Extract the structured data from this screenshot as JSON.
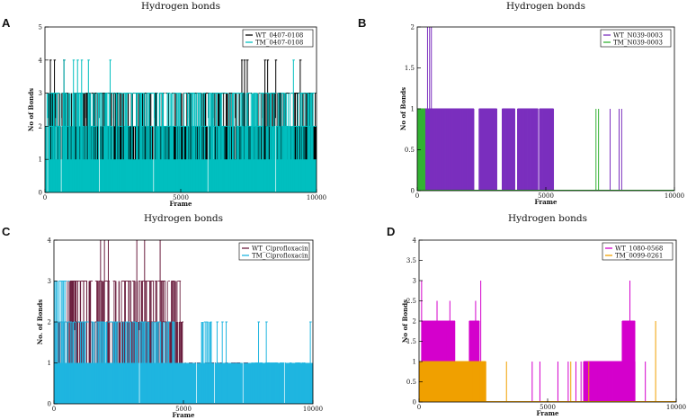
{
  "chart_data": [
    {
      "panel": "A",
      "type": "line",
      "title": "Hydrogen bonds",
      "xlabel": "Frame",
      "ylabel": "No of Bonds",
      "xlim": [
        0,
        10000
      ],
      "ylim": [
        0,
        5
      ],
      "xticks": [
        0,
        5000,
        10000
      ],
      "yticks": [
        0,
        1,
        2,
        3,
        4,
        5
      ],
      "legend_position": "top-right",
      "series": [
        {
          "name": "WT_0407-0108",
          "color": "#000000",
          "mode": "dense",
          "base": [
            [
              0,
              10000,
              2
            ]
          ],
          "high": [
            [
              0,
              10000,
              3
            ]
          ],
          "spikes": [
            [
              200,
              4
            ],
            [
              350,
              4
            ],
            [
              700,
              4
            ],
            [
              7250,
              4
            ],
            [
              7350,
              4
            ],
            [
              7450,
              4
            ],
            [
              8100,
              4
            ],
            [
              8200,
              4
            ],
            [
              8500,
              4
            ],
            [
              9400,
              4
            ]
          ],
          "drops": [
            [
              50,
              0
            ],
            [
              400,
              0
            ],
            [
              900,
              0
            ],
            [
              1500,
              0
            ],
            [
              1900,
              1
            ],
            [
              2500,
              1
            ],
            [
              3300,
              1
            ],
            [
              4200,
              1
            ],
            [
              5300,
              1
            ],
            [
              6200,
              1
            ],
            [
              7000,
              1
            ],
            [
              8000,
              1
            ],
            [
              9100,
              1
            ]
          ]
        },
        {
          "name": "TM_0407-0108",
          "color": "#00BFBF",
          "mode": "dense",
          "base": [
            [
              0,
              10000,
              1
            ]
          ],
          "high": [
            [
              0,
              10000,
              2
            ],
            [
              0,
              1500,
              3
            ],
            [
              1500,
              10000,
              3
            ]
          ],
          "spikes": [
            [
              700,
              4
            ],
            [
              1050,
              4
            ],
            [
              1200,
              4
            ],
            [
              1350,
              4
            ],
            [
              1600,
              4
            ],
            [
              2400,
              4
            ],
            [
              9150,
              4
            ]
          ],
          "drops": [
            [
              100,
              0
            ],
            [
              600,
              0
            ],
            [
              2000,
              0
            ],
            [
              4000,
              0
            ],
            [
              6000,
              0
            ],
            [
              8500,
              0
            ]
          ]
        }
      ]
    },
    {
      "panel": "B",
      "type": "line",
      "title": "Hydrogen bonds",
      "xlabel": "Frame",
      "ylabel": "No of Bonds",
      "xlim": [
        0,
        10000
      ],
      "ylim": [
        0,
        2
      ],
      "xticks": [
        0,
        5000,
        10000
      ],
      "yticks": [
        0,
        0.5,
        1,
        1.5,
        2
      ],
      "legend_position": "top-right",
      "series": [
        {
          "name": "WT_N039-0003",
          "color": "#7B2FBE",
          "mode": "sparse",
          "fill_ranges": [
            [
              0,
              450,
              1
            ],
            [
              450,
              650,
              1
            ],
            [
              650,
              2200,
              1
            ],
            [
              2400,
              3100,
              1
            ],
            [
              3300,
              3800,
              1
            ],
            [
              3900,
              4700,
              1
            ],
            [
              4750,
              5300,
              1
            ]
          ],
          "spikes": [
            [
              400,
              2
            ],
            [
              480,
              2
            ],
            [
              550,
              2
            ],
            [
              1700,
              1
            ],
            [
              2000,
              1
            ],
            [
              2200,
              1
            ],
            [
              3500,
              1
            ],
            [
              4400,
              1
            ],
            [
              7500,
              1
            ],
            [
              7850,
              1
            ],
            [
              7950,
              1
            ]
          ]
        },
        {
          "name": "TM_N039-0003",
          "color": "#33B233",
          "mode": "sparse",
          "fill_ranges": [
            [
              0,
              300,
              1
            ]
          ],
          "spikes": [
            [
              6950,
              1
            ],
            [
              7050,
              1
            ]
          ]
        }
      ]
    },
    {
      "panel": "C",
      "type": "line",
      "title": "Hydrogen bonds",
      "xlabel": "Frame",
      "ylabel": "No. of Bonds",
      "xlim": [
        0,
        10000
      ],
      "ylim": [
        0,
        4
      ],
      "xticks": [
        0,
        5000,
        10000
      ],
      "yticks": [
        0,
        1,
        2,
        3,
        4
      ],
      "legend_position": "top-right",
      "series": [
        {
          "name": "WT_Ciprofloxacin",
          "color": "#6B1E3E",
          "mode": "dense",
          "base": [
            [
              0,
              5000,
              1
            ]
          ],
          "high": [
            [
              0,
              5000,
              2
            ],
            [
              500,
              4900,
              3
            ],
            [
              5000,
              7500,
              1
            ]
          ],
          "spikes": [
            [
              1800,
              4
            ],
            [
              1950,
              4
            ],
            [
              2100,
              4
            ],
            [
              3200,
              4
            ],
            [
              3500,
              4
            ],
            [
              4100,
              4
            ],
            [
              900,
              0
            ]
          ],
          "drops": [
            [
              800,
              0
            ],
            [
              5800,
              0
            ],
            [
              6600,
              0
            ],
            [
              7200,
              0
            ]
          ]
        },
        {
          "name": "TM_Ciprofloxacin",
          "color": "#1FB5E0",
          "mode": "dense",
          "base": [
            [
              0,
              10000,
              1
            ]
          ],
          "high": [
            [
              0,
              4700,
              2
            ],
            [
              5700,
              6100,
              2
            ],
            [
              7600,
              9700,
              1
            ],
            [
              0,
              600,
              3
            ]
          ],
          "spikes": [
            [
              6300,
              2
            ],
            [
              6500,
              2
            ],
            [
              6650,
              2
            ],
            [
              7900,
              2
            ],
            [
              8200,
              2
            ],
            [
              9900,
              2
            ]
          ],
          "drops": [
            [
              3300,
              0
            ],
            [
              5500,
              0
            ],
            [
              6200,
              0
            ],
            [
              7300,
              0
            ],
            [
              8900,
              0
            ]
          ]
        }
      ]
    },
    {
      "panel": "D",
      "type": "line",
      "title": "Hydrogen bonds",
      "xlabel": "Frame",
      "ylabel": "No of Bonds",
      "xlim": [
        0,
        10000
      ],
      "ylim": [
        0,
        4
      ],
      "xticks": [
        0,
        5000,
        10000
      ],
      "yticks": [
        0,
        0.5,
        1,
        1.5,
        2,
        2.5,
        3,
        3.5,
        4
      ],
      "legend_position": "top-right",
      "series": [
        {
          "name": "WT_1080-0568",
          "color": "#D400CC",
          "mode": "sparse",
          "fill_ranges": [
            [
              0,
              1400,
              1
            ],
            [
              100,
              1400,
              2
            ],
            [
              1700,
              2400,
              1
            ],
            [
              1950,
              2350,
              2
            ],
            [
              6400,
              8400,
              1
            ],
            [
              7900,
              8400,
              2
            ]
          ],
          "spikes": [
            [
              100,
              3
            ],
            [
              700,
              2.5
            ],
            [
              1200,
              2.5
            ],
            [
              2200,
              2.5
            ],
            [
              2400,
              3
            ],
            [
              4400,
              1
            ],
            [
              4700,
              1
            ],
            [
              5400,
              1
            ],
            [
              5800,
              1
            ],
            [
              6100,
              1
            ],
            [
              6300,
              1
            ],
            [
              8200,
              3
            ],
            [
              8800,
              1
            ]
          ]
        },
        {
          "name": "TM_0099-0261",
          "color": "#F0A000",
          "mode": "sparse",
          "fill_ranges": [
            [
              0,
              2600,
              1
            ]
          ],
          "spikes": [
            [
              3400,
              1
            ],
            [
              5900,
              1
            ],
            [
              6600,
              1
            ],
            [
              9200,
              2
            ]
          ]
        }
      ]
    }
  ]
}
